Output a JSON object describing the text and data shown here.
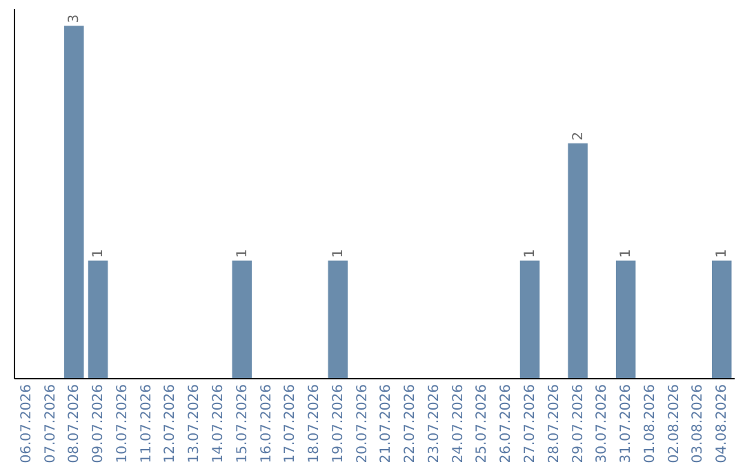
{
  "chart_data": {
    "type": "bar",
    "categories": [
      "06.07.2026",
      "07.07.2026",
      "08.07.2026",
      "09.07.2026",
      "10.07.2026",
      "11.07.2026",
      "12.07.2026",
      "13.07.2026",
      "14.07.2026",
      "15.07.2026",
      "16.07.2026",
      "17.07.2026",
      "18.07.2026",
      "19.07.2026",
      "20.07.2026",
      "21.07.2026",
      "22.07.2026",
      "23.07.2026",
      "24.07.2026",
      "25.07.2026",
      "26.07.2026",
      "27.07.2026",
      "28.07.2026",
      "29.07.2026",
      "30.07.2026",
      "31.07.2026",
      "01.08.2026",
      "02.08.2026",
      "03.08.2026",
      "04.08.2026"
    ],
    "values": [
      null,
      null,
      3,
      1,
      null,
      null,
      null,
      null,
      null,
      1,
      null,
      null,
      null,
      1,
      null,
      null,
      null,
      null,
      null,
      null,
      null,
      1,
      null,
      2,
      null,
      1,
      null,
      null,
      null,
      1
    ],
    "color": "#6a8cac",
    "ylim": [
      0,
      3.15
    ],
    "data_labels": true,
    "grid": false,
    "tick_labels": "x"
  }
}
